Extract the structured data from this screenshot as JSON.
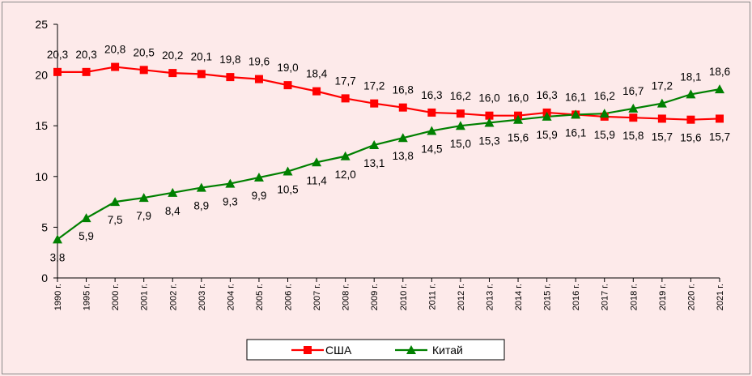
{
  "chart_data": {
    "type": "line",
    "categories": [
      "1990 г.",
      "1995 г.",
      "2000 г.",
      "2001 г.",
      "2002 г.",
      "2003 г.",
      "2004 г.",
      "2005 г.",
      "2006 г.",
      "2007 г.",
      "2008 г.",
      "2009 г.",
      "2010 г.",
      "2011 г.",
      "2012 г.",
      "2013 г.",
      "2014 г.",
      "2015 г.",
      "2016 г.",
      "2017 г.",
      "2018 г.",
      "2019 г.",
      "2020 г.",
      "2021 г."
    ],
    "series": [
      {
        "name": "США",
        "color": "#ff0000",
        "marker": "square",
        "values": [
          20.3,
          20.3,
          20.8,
          20.5,
          20.2,
          20.1,
          19.8,
          19.6,
          19.0,
          18.4,
          17.7,
          17.2,
          16.8,
          16.3,
          16.2,
          16.0,
          16.0,
          16.3,
          16.1,
          15.9,
          15.8,
          15.7,
          15.6,
          15.7
        ],
        "labels": [
          "20,3",
          "20,3",
          "20,8",
          "20,5",
          "20,2",
          "20,1",
          "19,8",
          "19,6",
          "19,0",
          "18,4",
          "17,7",
          "17,2",
          "16,8",
          "16,3",
          "16,2",
          "16,0",
          "16,0",
          "16,3",
          "16,1",
          "15,9",
          "15,8",
          "15,7",
          "15,6",
          "15,7"
        ]
      },
      {
        "name": "Китай",
        "color": "#008000",
        "marker": "triangle",
        "values": [
          3.8,
          5.9,
          7.5,
          7.9,
          8.4,
          8.9,
          9.3,
          9.9,
          10.5,
          11.4,
          12.0,
          13.1,
          13.8,
          14.5,
          15.0,
          15.3,
          15.6,
          15.9,
          16.1,
          16.2,
          16.7,
          17.2,
          18.1,
          18.6
        ],
        "labels": [
          "3,8",
          "5,9",
          "7,5",
          "7,9",
          "8,4",
          "8,9",
          "9,3",
          "9,9",
          "10,5",
          "11,4",
          "12,0",
          "13,1",
          "13,8",
          "14,5",
          "15,0",
          "15,3",
          "15,6",
          "15,9",
          "16,1",
          "16,2",
          "16,7",
          "17,2",
          "18,1",
          "18,6"
        ]
      }
    ],
    "ylim": [
      0,
      25
    ],
    "yticks": [
      "0",
      "5",
      "10",
      "15",
      "20",
      "25"
    ],
    "grid": false,
    "legend_position": "bottom"
  }
}
